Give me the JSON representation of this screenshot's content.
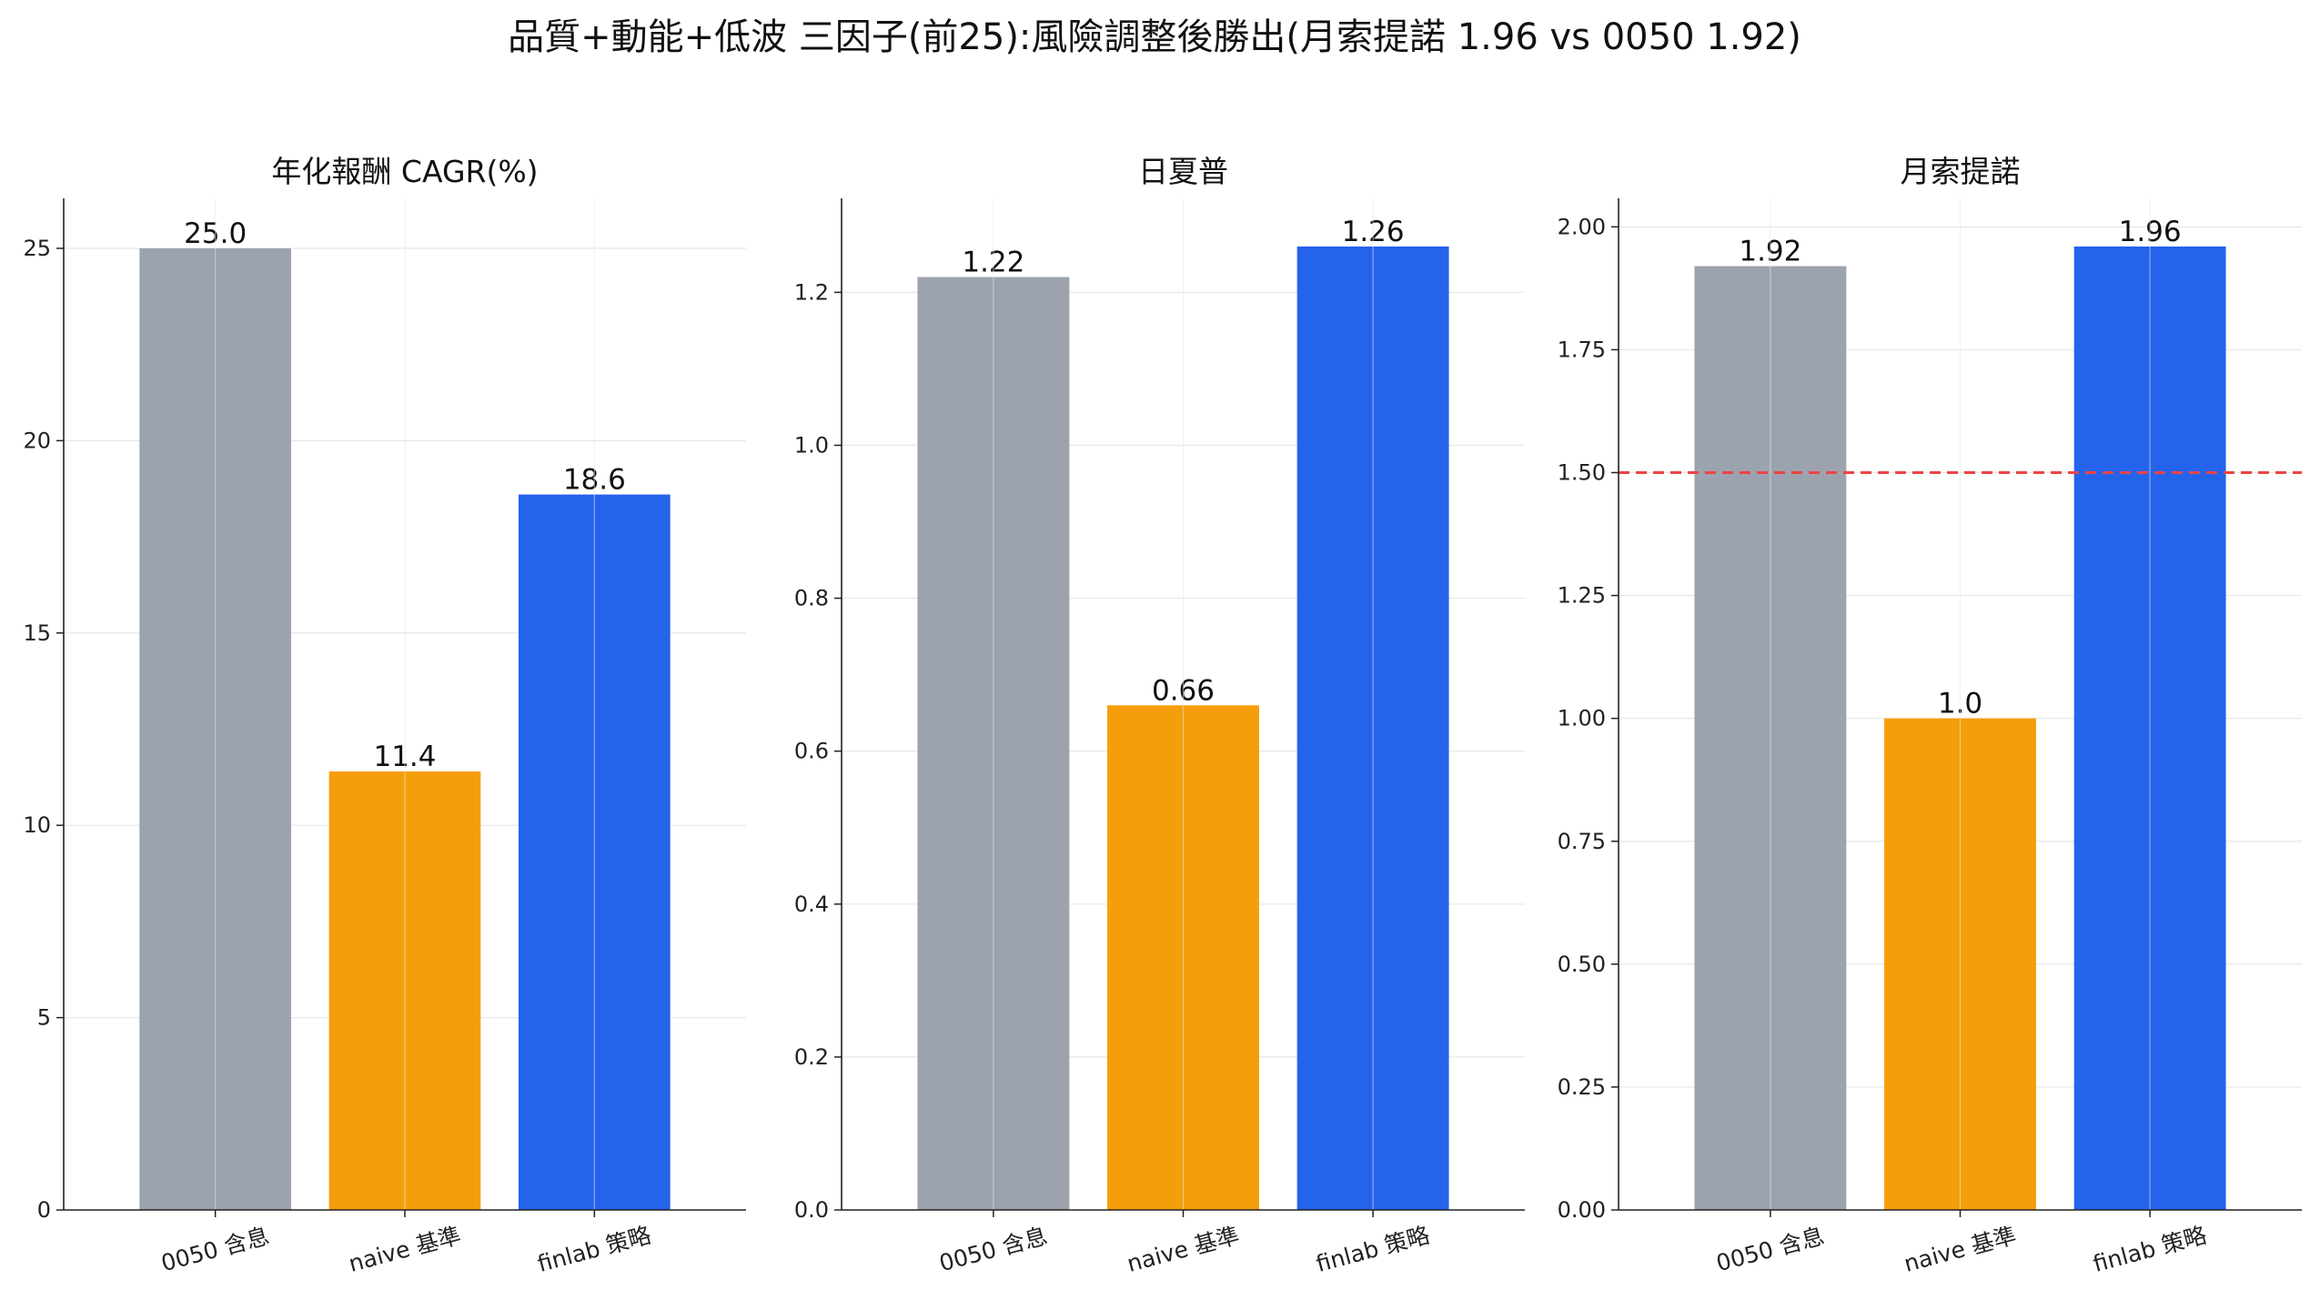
{
  "suptitle": "品質+動能+低波 三因子(前25):風險調整後勝出(月索提諾 1.96 vs 0050 1.92)",
  "colors": [
    "#9ca3af",
    "#f59e0b",
    "#2563eb"
  ],
  "reference_line_color": "#ef4444",
  "chart_data": [
    {
      "type": "bar",
      "title": "年化報酬 CAGR(%)",
      "categories": [
        "0050 含息",
        "naive 基準",
        "finlab 策略"
      ],
      "values": [
        25.0,
        11.4,
        18.6
      ],
      "value_labels": [
        "25.0",
        "11.4",
        "18.6"
      ],
      "ylim": [
        0,
        26.3
      ],
      "yticks": [
        0,
        5,
        10,
        15,
        20,
        25
      ],
      "ytick_labels": [
        "0",
        "5",
        "10",
        "15",
        "20",
        "25"
      ],
      "grid": true
    },
    {
      "type": "bar",
      "title": "日夏普",
      "categories": [
        "0050 含息",
        "naive 基準",
        "finlab 策略"
      ],
      "values": [
        1.22,
        0.66,
        1.26
      ],
      "value_labels": [
        "1.22",
        "0.66",
        "1.26"
      ],
      "ylim": [
        0,
        1.323
      ],
      "yticks": [
        0,
        0.2,
        0.4,
        0.6,
        0.8,
        1.0,
        1.2
      ],
      "ytick_labels": [
        "0.0",
        "0.2",
        "0.4",
        "0.6",
        "0.8",
        "1.0",
        "1.2"
      ],
      "grid": true
    },
    {
      "type": "bar",
      "title": "月索提諾",
      "categories": [
        "0050 含息",
        "naive 基準",
        "finlab 策略"
      ],
      "values": [
        1.92,
        1.0,
        1.96
      ],
      "value_labels": [
        "1.92",
        "1.0",
        "1.96"
      ],
      "ylim": [
        0,
        2.058
      ],
      "yticks": [
        0,
        0.25,
        0.5,
        0.75,
        1.0,
        1.25,
        1.5,
        1.75,
        2.0
      ],
      "ytick_labels": [
        "0.00",
        "0.25",
        "0.50",
        "0.75",
        "1.00",
        "1.25",
        "1.50",
        "1.75",
        "2.00"
      ],
      "reference_line": 1.5,
      "grid": true
    }
  ]
}
